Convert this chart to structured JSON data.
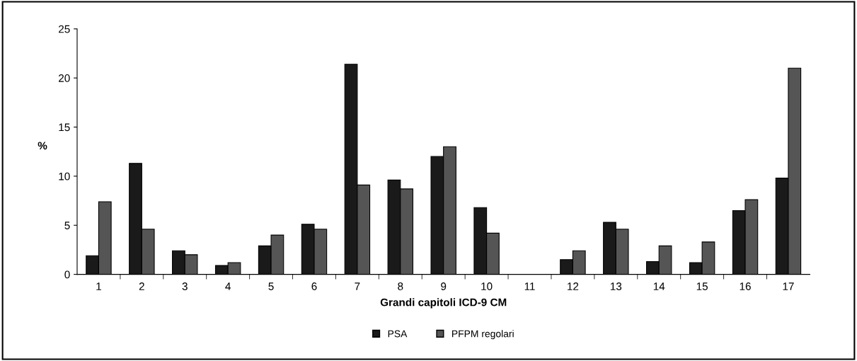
{
  "chart_data": {
    "type": "bar",
    "xlabel": "Grandi capitoli ICD-9 CM",
    "ylabel": "%",
    "categories": [
      "1",
      "2",
      "3",
      "4",
      "5",
      "6",
      "7",
      "8",
      "9",
      "10",
      "11",
      "12",
      "13",
      "14",
      "15",
      "16",
      "17"
    ],
    "series": [
      {
        "name": "PSA",
        "color": "#1a1a1a",
        "values": [
          1.9,
          11.3,
          2.4,
          0.9,
          2.9,
          5.1,
          21.4,
          9.6,
          12.0,
          6.8,
          null,
          1.5,
          5.3,
          1.3,
          1.2,
          6.5,
          9.8
        ]
      },
      {
        "name": "PFPM regolari",
        "color": "#555555",
        "values": [
          7.4,
          4.6,
          2.0,
          1.2,
          4.0,
          4.6,
          9.1,
          8.7,
          13.0,
          4.2,
          null,
          2.4,
          4.6,
          2.9,
          3.3,
          7.6,
          21.0
        ]
      }
    ],
    "ylim": [
      0,
      25
    ],
    "yticks": [
      0,
      5,
      10,
      15,
      20,
      25
    ],
    "grid": false,
    "legend": "bottom"
  }
}
